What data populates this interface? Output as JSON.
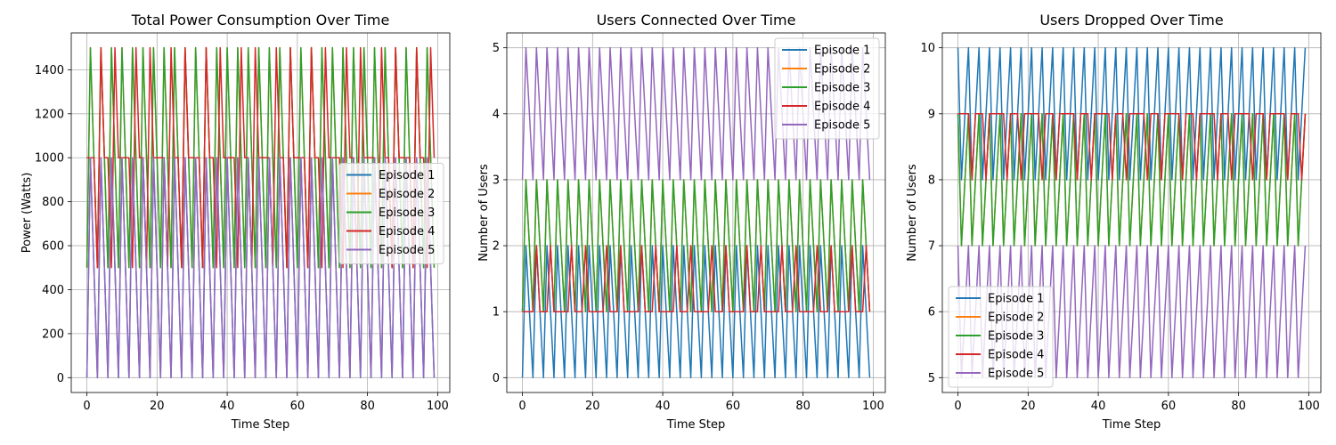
{
  "colors": {
    "Episode 1": "#1f77b4",
    "Episode 2": "#ff7f0e",
    "Episode 3": "#2ca02c",
    "Episode 4": "#d62728",
    "Episode 5": "#9467bd"
  },
  "chart_data": [
    {
      "type": "line",
      "title": "Total Power Consumption Over Time",
      "xlabel": "Time Step",
      "ylabel": "Power (Watts)",
      "xlim": [
        0,
        99
      ],
      "ylim": [
        0,
        1500
      ],
      "xticks": [
        0,
        20,
        40,
        60,
        80,
        100
      ],
      "yticks": [
        0,
        200,
        400,
        600,
        800,
        1000,
        1200,
        1400
      ],
      "grid": true,
      "legend_position": "center-right",
      "series_pattern": "cycle",
      "series": [
        {
          "name": "Episode 1",
          "start": 0,
          "pattern": [
            0,
            1000,
            500,
            0,
            1000,
            500
          ]
        },
        {
          "name": "Episode 2",
          "start": 0,
          "pattern": [
            500,
            1500,
            1000,
            500,
            1500,
            1000
          ]
        },
        {
          "name": "Episode 3",
          "start": 0,
          "pattern": [
            500,
            1500,
            1000,
            500,
            1500,
            1000
          ]
        },
        {
          "name": "Episode 4",
          "start": 0,
          "pattern": [
            1000,
            1000,
            1000,
            500,
            1500,
            1000,
            1000,
            500,
            1500,
            1000
          ]
        },
        {
          "name": "Episode 5",
          "start": 0,
          "pattern": [
            0,
            1000,
            500,
            0,
            1000,
            500
          ]
        }
      ]
    },
    {
      "type": "line",
      "title": "Users Connected Over Time",
      "xlabel": "Time Step",
      "ylabel": "Number of Users",
      "xlim": [
        0,
        99
      ],
      "ylim": [
        0,
        5
      ],
      "xticks": [
        0,
        20,
        40,
        60,
        80,
        100
      ],
      "yticks": [
        0,
        1,
        2,
        3,
        4,
        5
      ],
      "grid": true,
      "legend_position": "top-right",
      "series_pattern": "cycle",
      "series": [
        {
          "name": "Episode 1",
          "start": 0,
          "pattern": [
            0,
            2,
            1,
            0,
            2,
            1
          ]
        },
        {
          "name": "Episode 2",
          "start": 0,
          "pattern": [
            1,
            3,
            2,
            1,
            3,
            2
          ]
        },
        {
          "name": "Episode 3",
          "start": 0,
          "pattern": [
            1,
            3,
            2,
            1,
            3,
            2
          ]
        },
        {
          "name": "Episode 4",
          "start": 0,
          "pattern": [
            1,
            1,
            1,
            1,
            2,
            1,
            1,
            1,
            2,
            1
          ]
        },
        {
          "name": "Episode 5",
          "start": 0,
          "pattern": [
            3,
            5,
            4,
            3,
            5,
            4
          ]
        }
      ]
    },
    {
      "type": "line",
      "title": "Users Dropped Over Time",
      "xlabel": "Time Step",
      "ylabel": "Number of Users",
      "xlim": [
        0,
        99
      ],
      "ylim": [
        5,
        10
      ],
      "xticks": [
        0,
        20,
        40,
        60,
        80,
        100
      ],
      "yticks": [
        5,
        6,
        7,
        8,
        9,
        10
      ],
      "grid": true,
      "legend_position": "bottom-left",
      "series_pattern": "cycle",
      "series": [
        {
          "name": "Episode 1",
          "start": 0,
          "pattern": [
            10,
            8,
            9,
            10,
            8,
            9
          ]
        },
        {
          "name": "Episode 2",
          "start": 0,
          "pattern": [
            9,
            7,
            8,
            9,
            7,
            8
          ]
        },
        {
          "name": "Episode 3",
          "start": 0,
          "pattern": [
            9,
            7,
            8,
            9,
            7,
            8
          ]
        },
        {
          "name": "Episode 4",
          "start": 0,
          "pattern": [
            9,
            9,
            9,
            9,
            8,
            9,
            9,
            9,
            8,
            9
          ]
        },
        {
          "name": "Episode 5",
          "start": 0,
          "pattern": [
            7,
            5,
            6,
            7,
            5,
            6
          ]
        }
      ]
    }
  ]
}
